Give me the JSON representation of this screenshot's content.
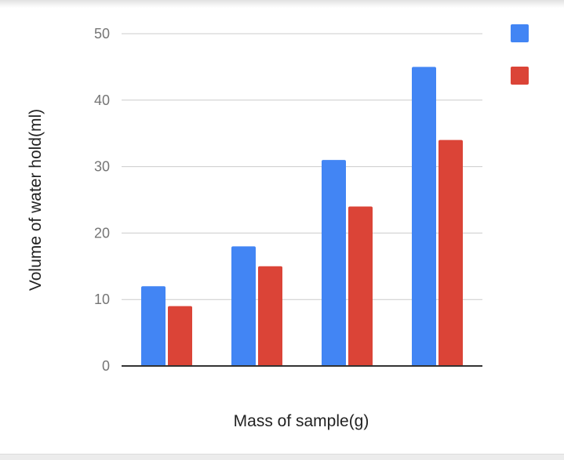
{
  "chart_data": {
    "type": "bar",
    "title": "",
    "xlabel": "Mass of sample(g)",
    "ylabel": "Volume of water hold(ml)",
    "categories": [
      "",
      "",
      "",
      ""
    ],
    "series": [
      {
        "values": [
          12,
          18,
          31,
          45
        ],
        "color": "#4285f4"
      },
      {
        "values": [
          9,
          15,
          24,
          34
        ],
        "color": "#db4437"
      }
    ],
    "ylim": [
      0,
      50
    ],
    "yticks": [
      0,
      10,
      20,
      30,
      40,
      50
    ],
    "grid": true,
    "legend_position": "right"
  }
}
